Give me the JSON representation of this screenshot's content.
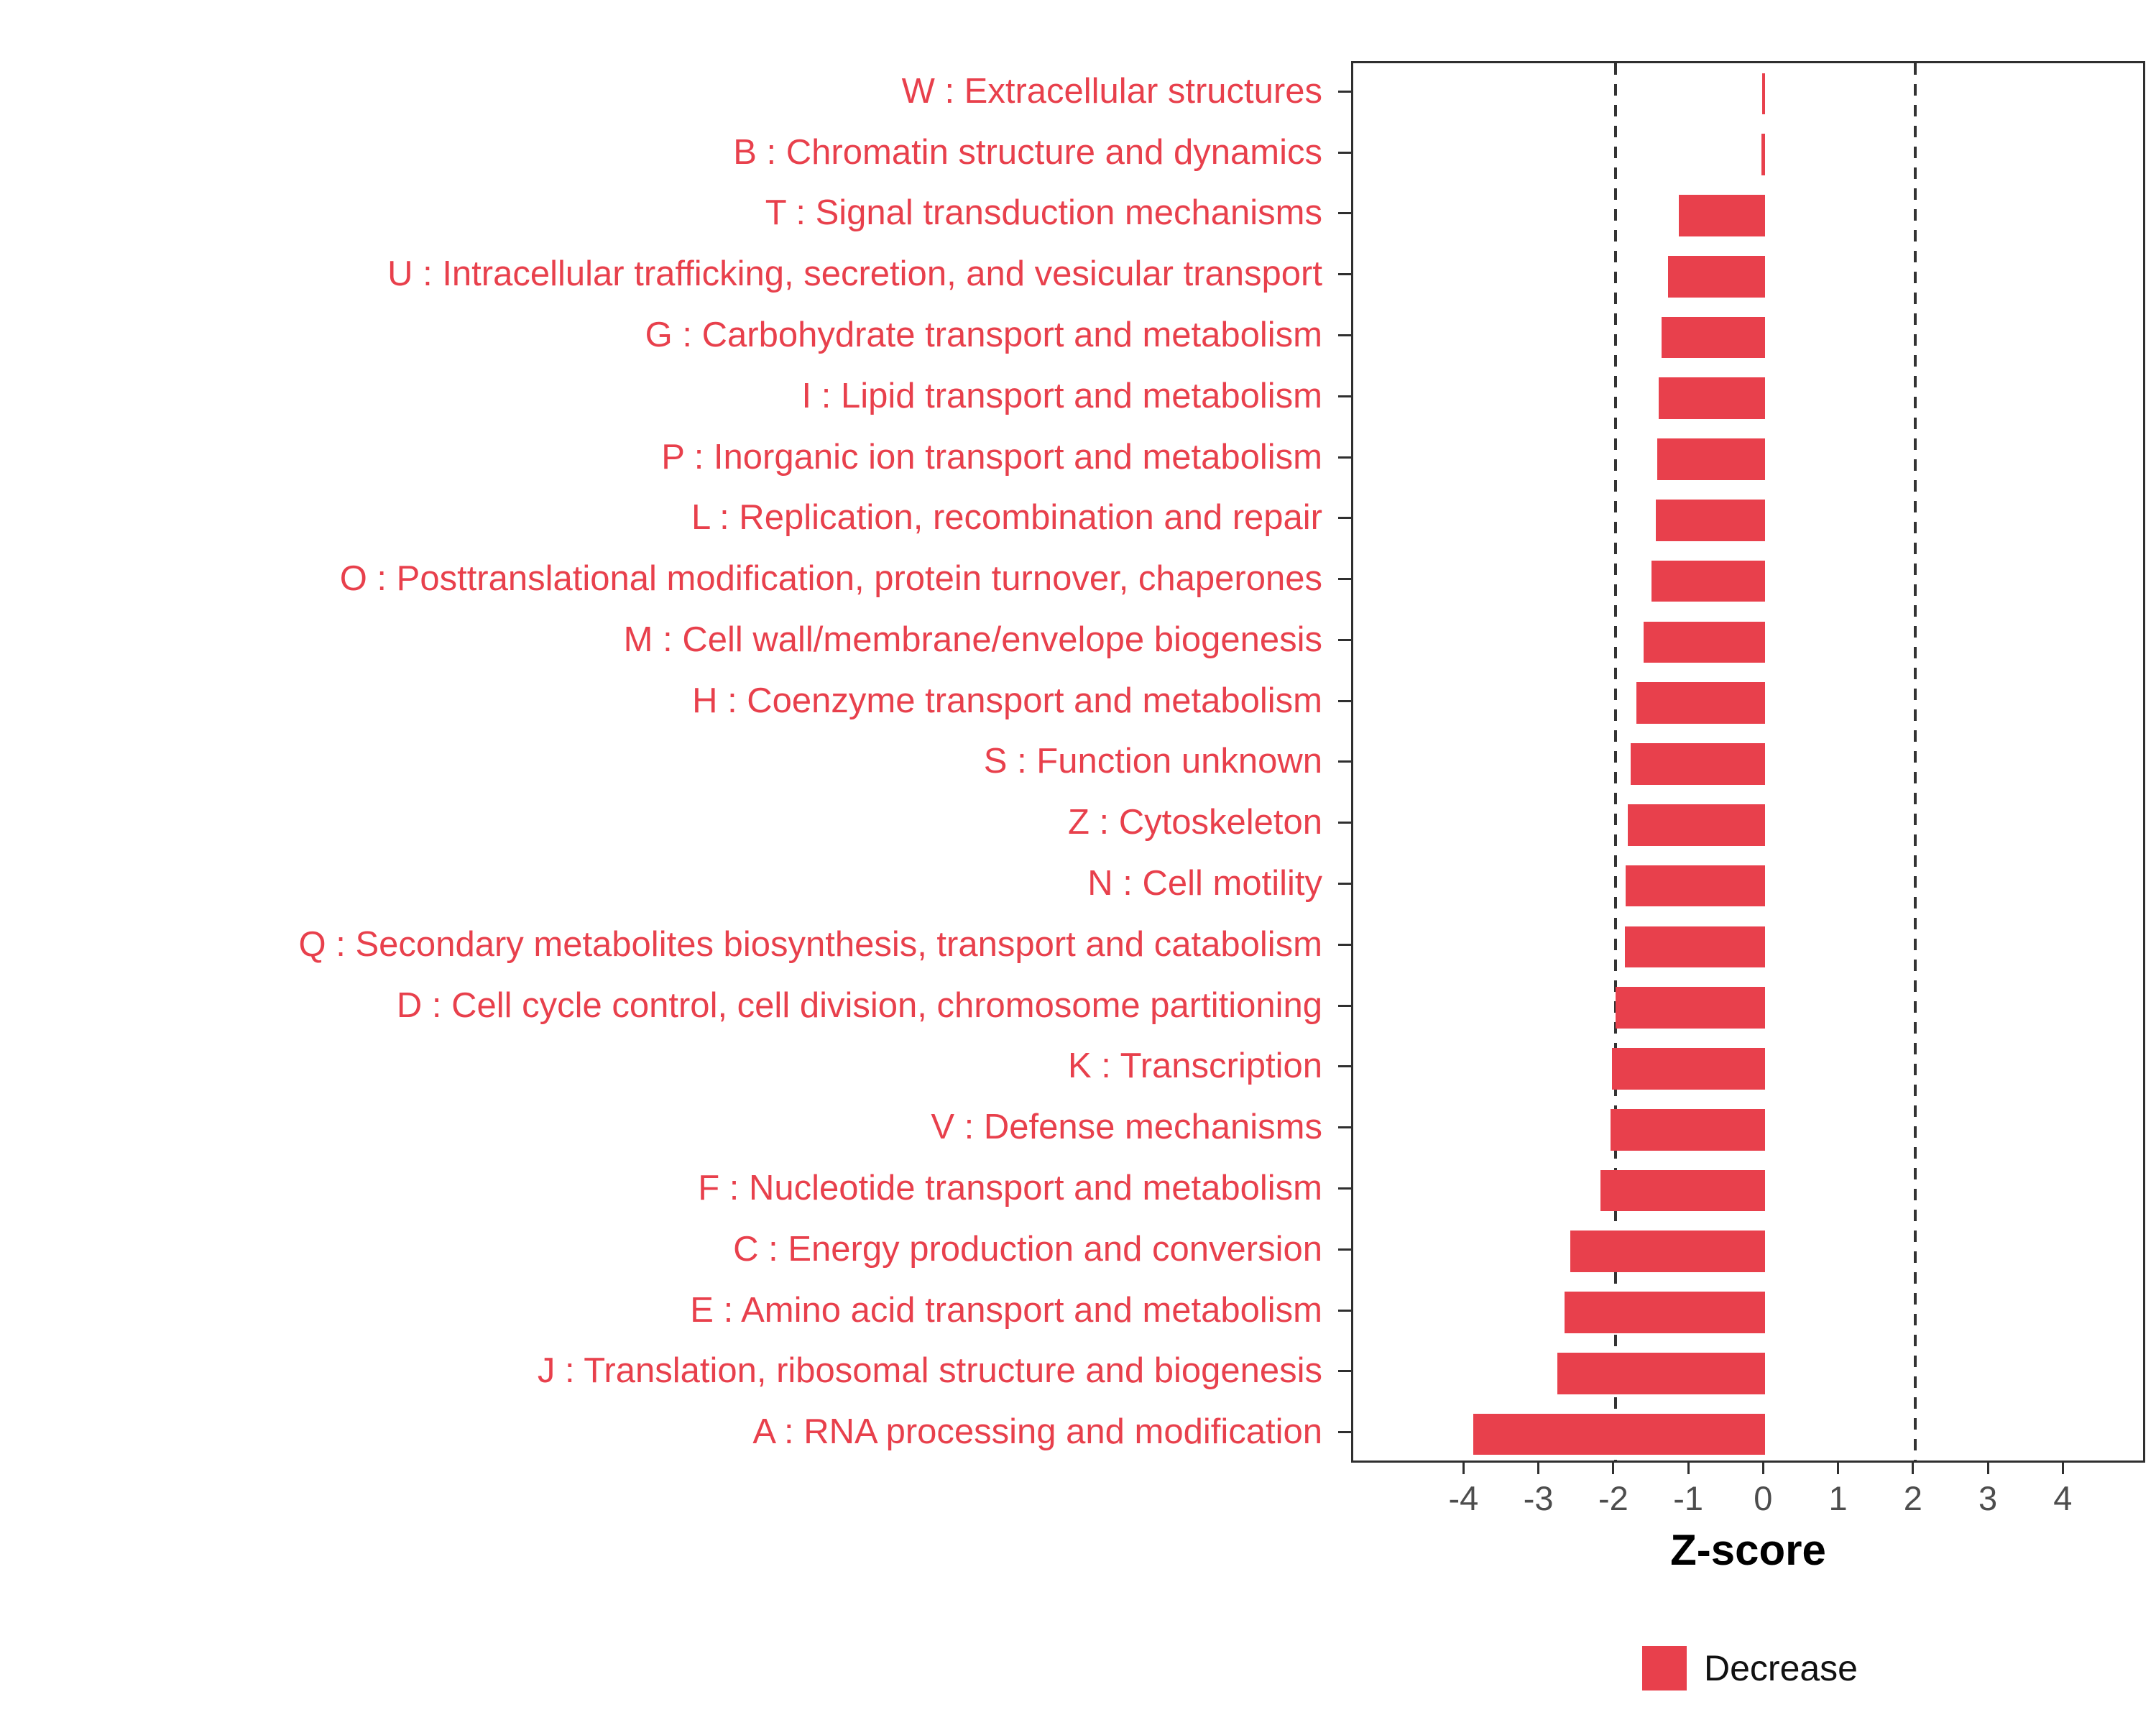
{
  "figure": {
    "xlabel": "Z-score",
    "legend": {
      "items": [
        {
          "label": "Decrease",
          "color": "#E8404C"
        }
      ]
    }
  },
  "colors": {
    "bar": "#E8404C",
    "category_label": "#E8404C",
    "axis_text": "#4D4D4D",
    "axis_title": "#000000",
    "panel_border": "#2F2F2F",
    "dashed_line": "#333333"
  },
  "chart_data": {
    "type": "bar",
    "orientation": "horizontal",
    "title": "",
    "xlabel": "Z-score",
    "ylabel": "",
    "categories": [
      "W : Extracellular structures",
      "B : Chromatin structure and dynamics",
      "T : Signal transduction mechanisms",
      "U : Intracellular trafficking, secretion, and vesicular transport",
      "G : Carbohydrate transport and metabolism",
      "I : Lipid transport and metabolism",
      "P : Inorganic ion transport and metabolism",
      "L : Replication, recombination and repair",
      "O : Posttranslational modification, protein turnover, chaperones",
      "M : Cell wall/membrane/envelope biogenesis",
      "H : Coenzyme transport and metabolism",
      "S : Function unknown",
      "Z : Cytoskeleton",
      "N : Cell motility",
      "Q : Secondary metabolites biosynthesis, transport and catabolism",
      "D : Cell cycle control, cell division, chromosome partitioning",
      "K : Transcription",
      "V : Defense mechanisms",
      "F : Nucleotide transport and metabolism",
      "C : Energy production and conversion",
      "E : Amino acid transport and metabolism",
      "J : Translation, ribosomal structure and biogenesis",
      "A : RNA processing and modification"
    ],
    "values": [
      -0.04,
      -0.05,
      -1.15,
      -1.3,
      -1.38,
      -1.42,
      -1.44,
      -1.46,
      -1.52,
      -1.62,
      -1.72,
      -1.8,
      -1.84,
      -1.86,
      -1.87,
      -2.0,
      -2.05,
      -2.07,
      -2.2,
      -2.6,
      -2.68,
      -2.78,
      -3.9
    ],
    "xlim": [
      -5.5,
      5.1
    ],
    "xticks": [
      -4,
      -3,
      -2,
      -1,
      0,
      1,
      2,
      3,
      4
    ],
    "reference_lines": [
      -2,
      2
    ],
    "grid": false,
    "legend_position": "bottom-right",
    "legend": [
      {
        "label": "Decrease",
        "color": "#E8404C"
      }
    ],
    "bar_color": "#E8404C"
  }
}
